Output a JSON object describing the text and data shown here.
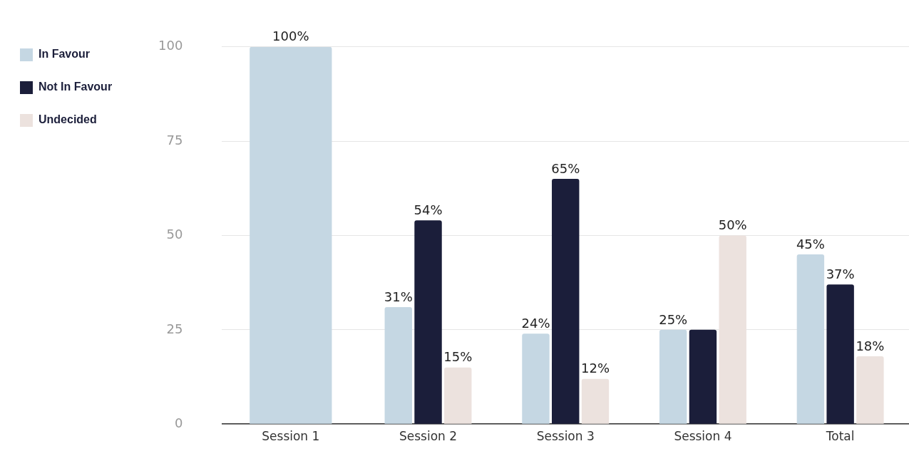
{
  "chart_data": {
    "type": "bar",
    "categories": [
      "Session 1",
      "Session 2",
      "Session 3",
      "Session 4",
      "Total"
    ],
    "series": [
      {
        "name": "In Favour",
        "color": "#c5d7e3",
        "values": [
          100,
          31,
          24,
          25,
          45
        ],
        "value_labels": [
          "100%",
          "31%",
          "24%",
          "25%",
          "45%"
        ]
      },
      {
        "name": "Not In Favour",
        "color": "#1b1e3a",
        "values": [
          null,
          54,
          65,
          25,
          37
        ],
        "value_labels": [
          null,
          "54%",
          "65%",
          null,
          "37%"
        ]
      },
      {
        "name": "Undecided",
        "color": "#ece2de",
        "values": [
          null,
          15,
          12,
          50,
          18
        ],
        "value_labels": [
          null,
          "15%",
          "12%",
          "50%",
          "18%"
        ]
      }
    ],
    "ylim": [
      0,
      100
    ],
    "yticks": [
      0,
      25,
      50,
      75,
      100
    ],
    "grid": "y",
    "legend": "left"
  }
}
